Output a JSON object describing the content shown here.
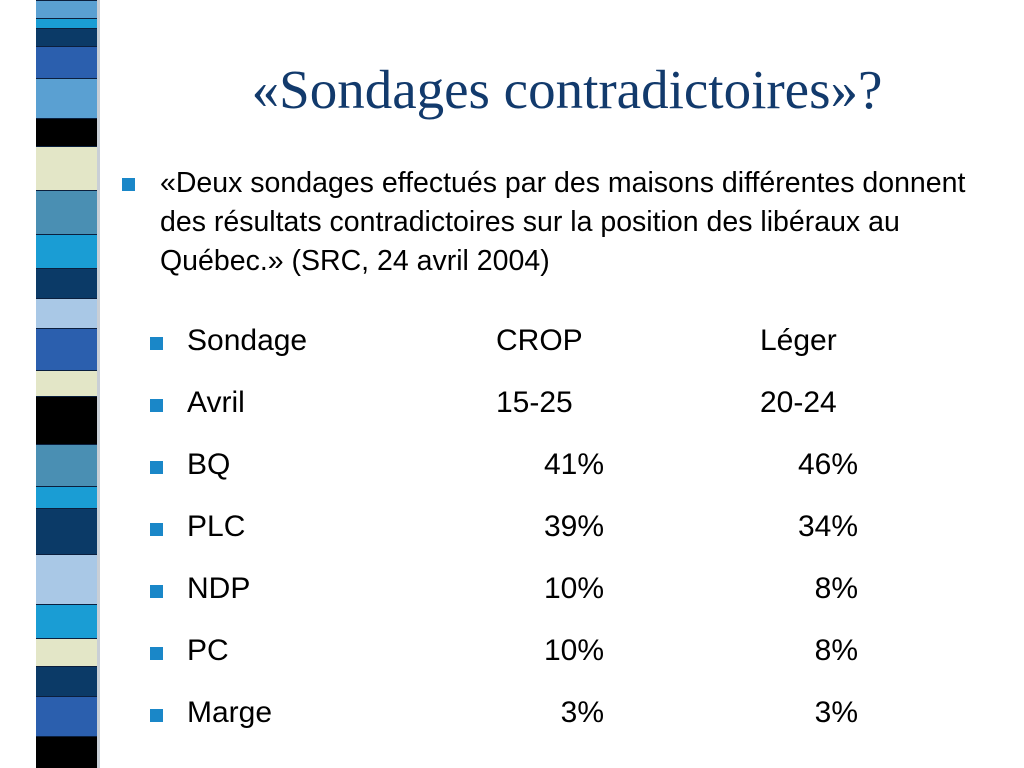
{
  "slide": {
    "title": "«Sondages contradictoires»?",
    "quote": "«Deux sondages effectués par des maisons différentes donnent des résultats contradictoires sur la position des libéraux au Québec.» (SRC, 24 avril 2004)"
  },
  "poll_table": {
    "rows": [
      {
        "label": "Sondage",
        "crop": "CROP",
        "leger": "Léger",
        "is_header": true
      },
      {
        "label": "Avril",
        "crop": "15-25",
        "leger": "20-24",
        "is_header": true
      },
      {
        "label": "BQ",
        "crop": "41%",
        "leger": "46%"
      },
      {
        "label": "PLC",
        "crop": "39%",
        "leger": "34%"
      },
      {
        "label": "NDP",
        "crop": "10%",
        "leger": "8%"
      },
      {
        "label": "PC",
        "crop": "10%",
        "leger": "8%"
      },
      {
        "label": "Marge",
        "crop": "3%",
        "leger": "3%"
      }
    ]
  },
  "colors": {
    "title": "#123a6c",
    "bullet": "#1a87c8",
    "stripes": [
      "#0b3a67",
      "#5aa0d2",
      "#2b5fae",
      "#000000",
      "#e3e6c7",
      "#4a8fb3",
      "#1a9dd4",
      "#a9c8e6"
    ]
  }
}
